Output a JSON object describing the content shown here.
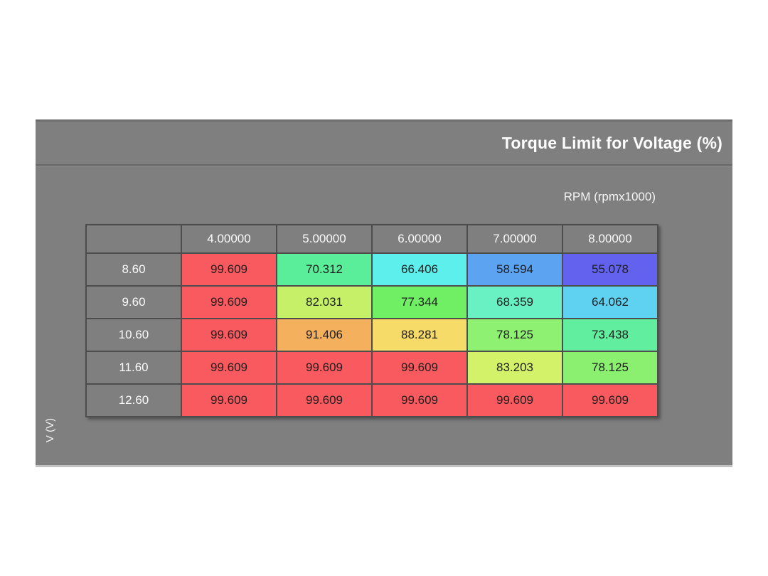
{
  "panel": {
    "title": "Torque Limit for Voltage (%)",
    "x_axis_label": "RPM (rpmx1000)",
    "y_axis_label": "V (V)"
  },
  "table": {
    "column_headers": [
      "4.00000",
      "5.00000",
      "6.00000",
      "7.00000",
      "8.00000"
    ],
    "row_headers": [
      "8.60",
      "9.60",
      "10.60",
      "11.60",
      "12.60"
    ],
    "cells": [
      [
        {
          "value": "99.609",
          "bg": "#f95a5f"
        },
        {
          "value": "70.312",
          "bg": "#5bee9a"
        },
        {
          "value": "66.406",
          "bg": "#5defec"
        },
        {
          "value": "58.594",
          "bg": "#5ca4f2"
        },
        {
          "value": "55.078",
          "bg": "#6262ef"
        }
      ],
      [
        {
          "value": "99.609",
          "bg": "#f95a5f"
        },
        {
          "value": "82.031",
          "bg": "#c6f068"
        },
        {
          "value": "77.344",
          "bg": "#70ee64"
        },
        {
          "value": "68.359",
          "bg": "#69f1c3"
        },
        {
          "value": "64.062",
          "bg": "#60d2f1"
        }
      ],
      [
        {
          "value": "99.609",
          "bg": "#f95a5f"
        },
        {
          "value": "91.406",
          "bg": "#f5b05e"
        },
        {
          "value": "88.281",
          "bg": "#f6db68"
        },
        {
          "value": "78.125",
          "bg": "#8ff171"
        },
        {
          "value": "73.438",
          "bg": "#62ee9f"
        }
      ],
      [
        {
          "value": "99.609",
          "bg": "#f95a5f"
        },
        {
          "value": "99.609",
          "bg": "#f95a5f"
        },
        {
          "value": "99.609",
          "bg": "#f95a5f"
        },
        {
          "value": "83.203",
          "bg": "#d3f26a"
        },
        {
          "value": "78.125",
          "bg": "#8bf06f"
        }
      ],
      [
        {
          "value": "99.609",
          "bg": "#f95a5f"
        },
        {
          "value": "99.609",
          "bg": "#f95a5f"
        },
        {
          "value": "99.609",
          "bg": "#f95a5f"
        },
        {
          "value": "99.609",
          "bg": "#f95a5f"
        },
        {
          "value": "99.609",
          "bg": "#f95a5f"
        }
      ]
    ]
  },
  "colors": {
    "panel_bg": "#7f7f7f",
    "grid_border": "#4d4d4d",
    "header_text": "#fafafa",
    "cell_text": "#1e1e1e",
    "max_value_red": "#f95a5f"
  }
}
